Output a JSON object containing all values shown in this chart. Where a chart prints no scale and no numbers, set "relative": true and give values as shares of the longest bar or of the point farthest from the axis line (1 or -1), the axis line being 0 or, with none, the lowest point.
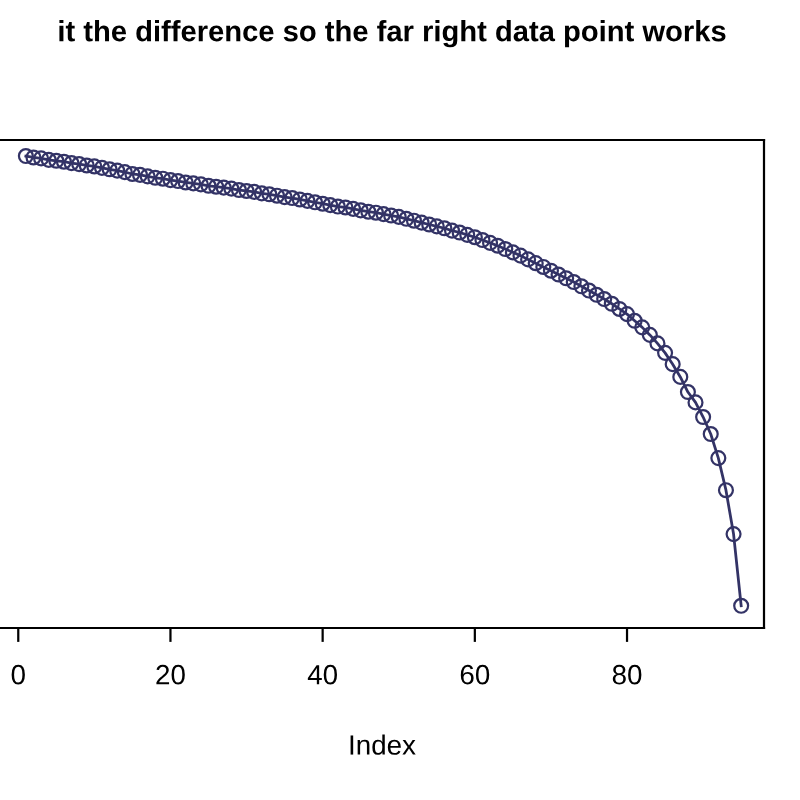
{
  "chart_data": {
    "type": "line",
    "title": "it the difference so the far right data point works",
    "xlabel": "Index",
    "relative": true,
    "x": [
      1,
      2,
      3,
      4,
      5,
      6,
      7,
      8,
      9,
      10,
      11,
      12,
      13,
      14,
      15,
      16,
      17,
      18,
      19,
      20,
      21,
      22,
      23,
      24,
      25,
      26,
      27,
      28,
      29,
      30,
      31,
      32,
      33,
      34,
      35,
      36,
      37,
      38,
      39,
      40,
      41,
      42,
      43,
      44,
      45,
      46,
      47,
      48,
      49,
      50,
      51,
      52,
      53,
      54,
      55,
      56,
      57,
      58,
      59,
      60,
      61,
      62,
      63,
      64,
      65,
      66,
      67,
      68,
      69,
      70,
      71,
      72,
      73,
      74,
      75,
      76,
      77,
      78,
      79,
      80,
      81,
      82,
      83,
      84,
      85,
      86,
      87,
      88,
      89,
      90,
      91,
      92,
      93,
      94,
      95
    ],
    "series": [
      {
        "color": "#333366",
        "values": [
          1.0,
          0.997,
          0.995,
          0.992,
          0.99,
          0.988,
          0.985,
          0.983,
          0.98,
          0.978,
          0.975,
          0.972,
          0.969,
          0.966,
          0.962,
          0.96,
          0.957,
          0.954,
          0.952,
          0.949,
          0.947,
          0.944,
          0.942,
          0.94,
          0.937,
          0.935,
          0.933,
          0.931,
          0.928,
          0.926,
          0.924,
          0.921,
          0.919,
          0.916,
          0.913,
          0.911,
          0.908,
          0.905,
          0.902,
          0.899,
          0.896,
          0.893,
          0.891,
          0.888,
          0.885,
          0.882,
          0.88,
          0.877,
          0.874,
          0.871,
          0.867,
          0.863,
          0.859,
          0.855,
          0.851,
          0.847,
          0.842,
          0.838,
          0.833,
          0.828,
          0.822,
          0.816,
          0.81,
          0.803,
          0.796,
          0.789,
          0.781,
          0.773,
          0.765,
          0.757,
          0.749,
          0.741,
          0.733,
          0.724,
          0.715,
          0.706,
          0.697,
          0.687,
          0.676,
          0.665,
          0.651,
          0.637,
          0.621,
          0.603,
          0.583,
          0.559,
          0.532,
          0.5,
          0.478,
          0.447,
          0.411,
          0.36,
          0.292,
          0.199,
          0.047
        ]
      }
    ],
    "xlim": [
      -2.4,
      98
    ],
    "xticks": [
      0,
      20,
      40,
      60,
      80
    ],
    "tick_labels": "x",
    "marker": "circle",
    "line_style": "solid",
    "grid": false,
    "legend": false
  }
}
